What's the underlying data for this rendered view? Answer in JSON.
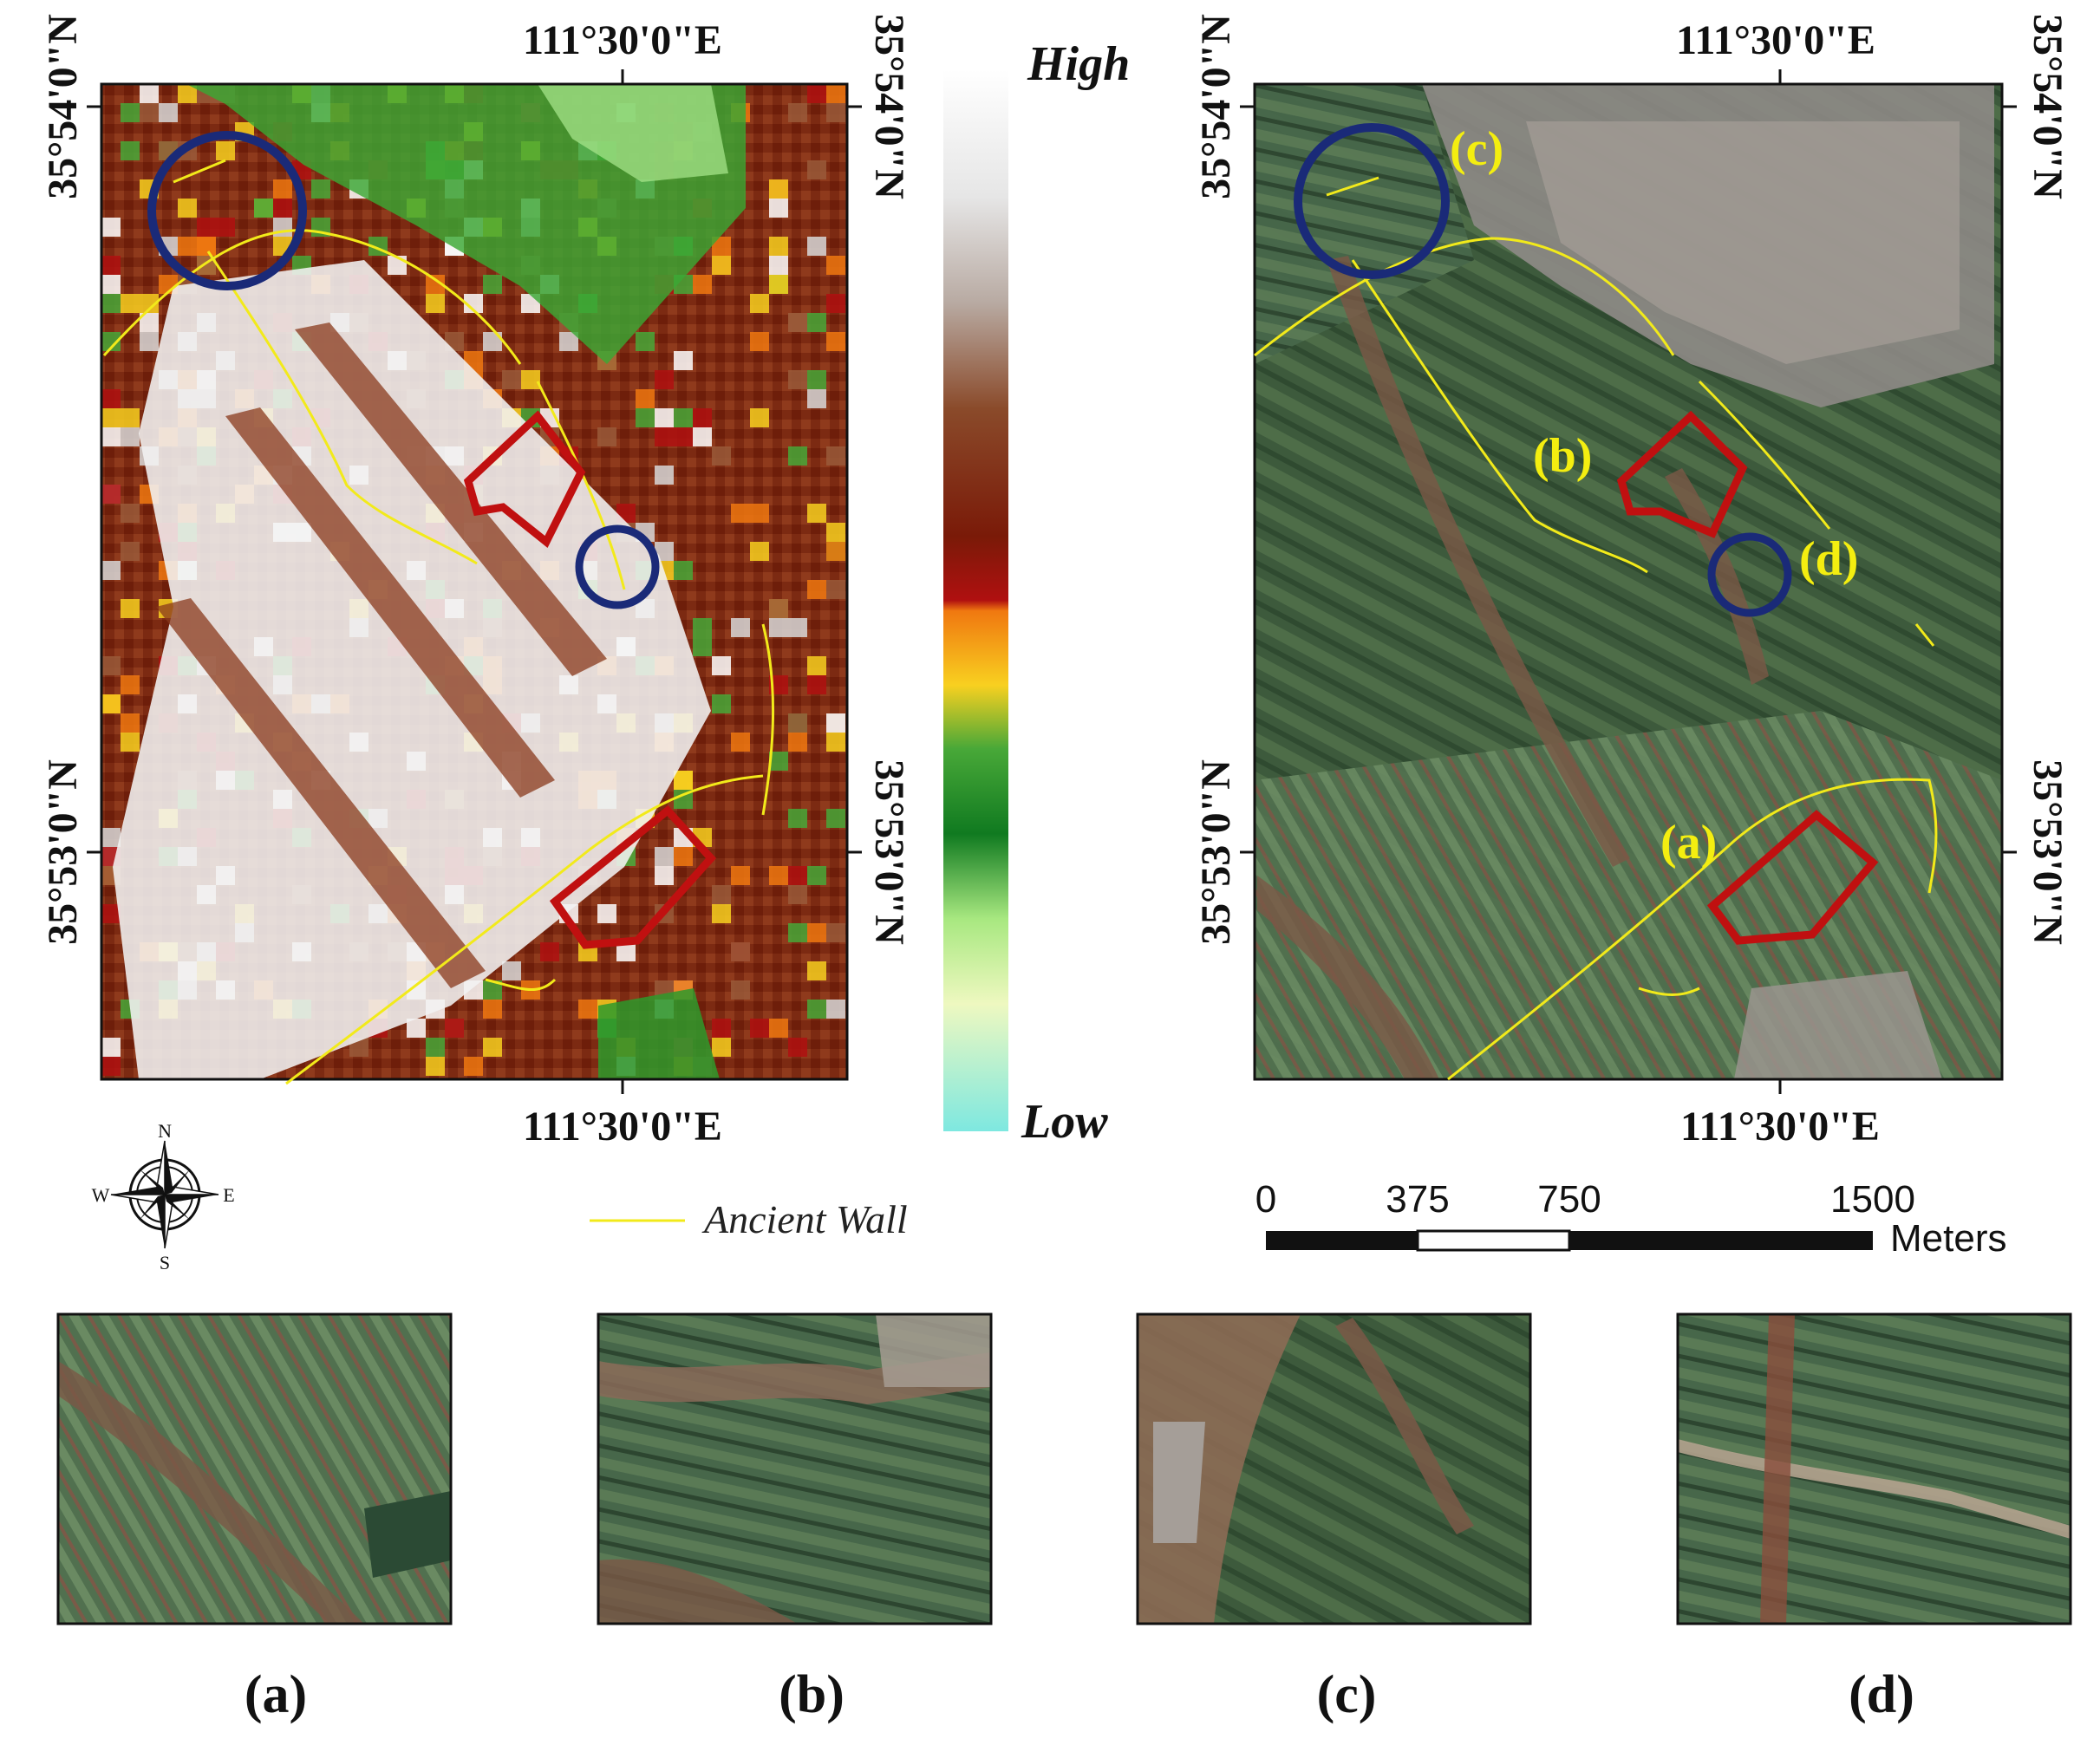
{
  "coords": {
    "lon": "111°30'0\"E",
    "lat_top": "35°54'0\"N",
    "lat_bottom": "35°53'0\"N"
  },
  "colorbar": {
    "high": "High",
    "low": "Low"
  },
  "legend": {
    "wall_label": "Ancient Wall",
    "wall_color": "#f2ea1a"
  },
  "compass": {
    "n": "N",
    "s": "S",
    "e": "E",
    "w": "W"
  },
  "scalebar": {
    "ticks": [
      "0",
      "375",
      "750",
      "1500"
    ],
    "unit": "Meters"
  },
  "sites": {
    "a": "(a)",
    "b": "(b)",
    "c": "(c)",
    "d": "(d)"
  },
  "captions": [
    "(a)",
    "(b)",
    "(c)",
    "(d)"
  ],
  "colors": {
    "circle": "#1a2a78",
    "polygon": "#c01010",
    "ramp": [
      "#ffffff",
      "#d9d9d9",
      "#b0988a",
      "#8a4a2a",
      "#7a1a08",
      "#b01010",
      "#f07810",
      "#f8d020",
      "#30a030",
      "#107a20",
      "#a8e880",
      "#e8f8c0",
      "#7ee8e0"
    ]
  }
}
